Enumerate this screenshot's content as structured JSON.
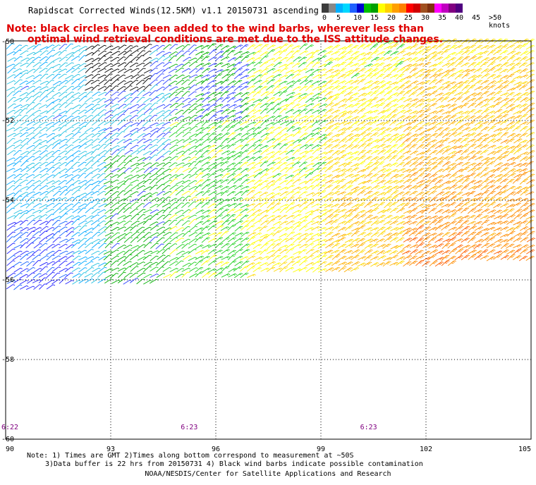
{
  "title": "Rapidscat Corrected Winds(12.5KM) v1.1 20150731 ascending",
  "note_line1": "Note: black circles have been added to the wind barbs, wherever less than",
  "note_line2": "optimal wind retrieval conditions are met due to the ISS attitude changes.",
  "legend": {
    "labels": [
      "0",
      "5",
      "10",
      "15",
      "20",
      "25",
      "30",
      "35",
      "40",
      "45",
      ">50 knots"
    ],
    "colors": [
      "#3c3c3c",
      "#888888",
      "#00b0ff",
      "#00d8ff",
      "#2060ff",
      "#0000d0",
      "#00c000",
      "#00a000",
      "#ffff00",
      "#ffd000",
      "#ffa000",
      "#ff8000",
      "#ff0000",
      "#d00000",
      "#a05020",
      "#803010",
      "#ff00ff",
      "#c000c0",
      "#800080",
      "#500080"
    ]
  },
  "axes": {
    "lon_labels": [
      "90",
      "93",
      "96",
      "99",
      "102",
      "105"
    ],
    "lat_labels": [
      "-50",
      "-52",
      "-54",
      "-56",
      "-58",
      "-60"
    ]
  },
  "times": [
    {
      "label": "6:22"
    },
    {
      "label": "6:23"
    },
    {
      "label": "6:23"
    }
  ],
  "footnote_line1": "Note: 1) Times are GMT 2)Times along bottom correspond to measurement at ~50S",
  "footnote_line2": "3)Data buffer is 22 hrs from 20150731 4) Black wind barbs indicate possible contamination",
  "credit": "NOAA/NESDIS/Center for Satellite Applications and Research"
}
